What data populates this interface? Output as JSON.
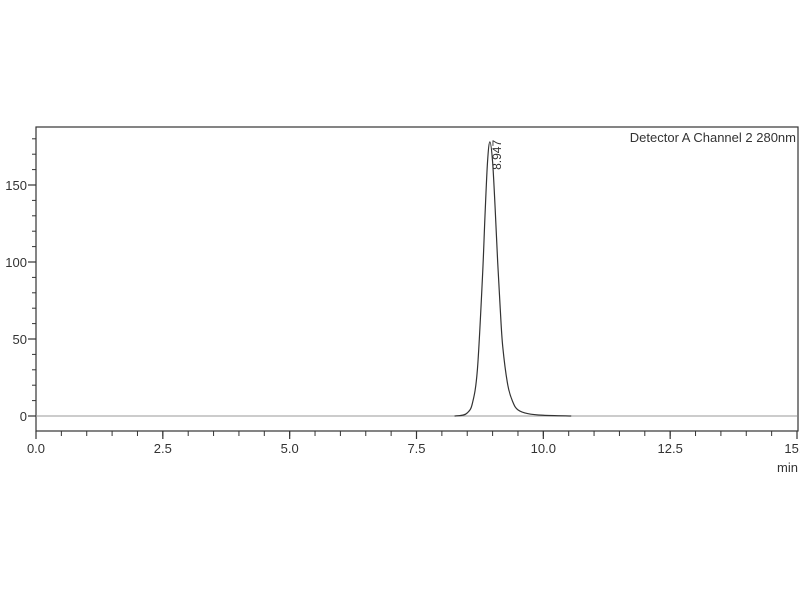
{
  "chart_data": {
    "type": "line",
    "title": "",
    "legend": "Detector A Channel 2 280nm",
    "legend_placement": "top-right",
    "xlabel": "min",
    "ylabel": "",
    "xlim": [
      0,
      15
    ],
    "ylim": [
      -10,
      188
    ],
    "x_ticks": [
      "0.0",
      "2.5",
      "5.0",
      "7.5",
      "10.0",
      "12.5",
      "15.0"
    ],
    "x_tick_values": [
      0,
      2.5,
      5,
      7.5,
      10,
      12.5,
      15
    ],
    "x_minor_step": 0.5,
    "y_ticks": [
      "0",
      "50",
      "100",
      "150"
    ],
    "y_tick_values": [
      0,
      50,
      100,
      150
    ],
    "y_minor_step": 10,
    "grid": false,
    "baseline": 0,
    "peaks": [
      {
        "retention_time": 8.947,
        "label": "8.947",
        "height": 178
      }
    ],
    "series": [
      {
        "x": [
          8.25,
          8.4,
          8.5,
          8.6,
          8.7,
          8.8,
          8.85,
          8.9,
          8.947,
          9.0,
          9.05,
          9.1,
          9.15,
          9.2,
          9.3,
          9.4,
          9.5,
          9.7,
          10.0,
          10.55
        ],
        "y": [
          0,
          0.5,
          2,
          8,
          30,
          90,
          130,
          165,
          178,
          165,
          135,
          100,
          70,
          45,
          20,
          9,
          4,
          1.5,
          0.5,
          0
        ]
      }
    ],
    "colors": {
      "trace": "#333333",
      "baseline": "#999999",
      "axis": "#333333"
    }
  }
}
